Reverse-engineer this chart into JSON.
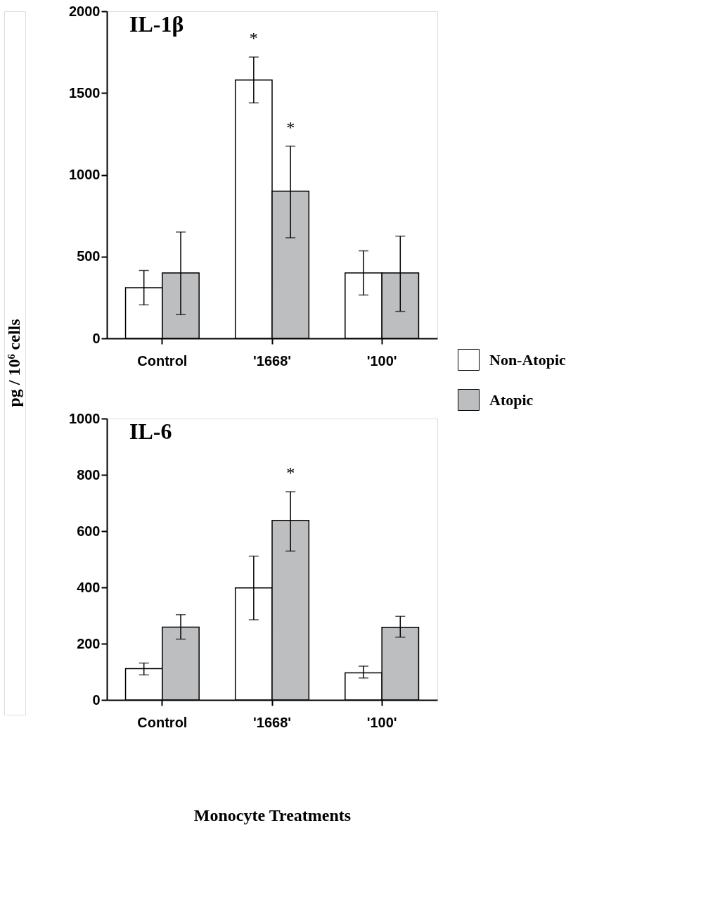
{
  "chart_data": [
    {
      "type": "bar",
      "title": "IL-1β",
      "ylabel": "pg / 10⁶ cells",
      "categories": [
        "Control",
        "'1668'",
        "'100'"
      ],
      "ylim": [
        0,
        2000
      ],
      "yticks": [
        0,
        500,
        1000,
        1500,
        2000
      ],
      "grid": false,
      "legend": "right",
      "series": [
        {
          "name": "Non-Atopic",
          "color": "#ffffff",
          "values": [
            310,
            1580,
            400
          ],
          "errors": [
            [
              205,
              415
            ],
            [
              1440,
              1720
            ],
            [
              265,
              535
            ]
          ]
        },
        {
          "name": "Atopic",
          "color": "#bcbec0",
          "values": [
            400,
            900,
            400
          ],
          "errors": [
            [
              145,
              650
            ],
            [
              615,
              1175
            ],
            [
              165,
              625
            ]
          ]
        }
      ],
      "annotations": [
        "*",
        "*"
      ]
    },
    {
      "type": "bar",
      "title": "IL-6",
      "xlabel": "Monocyte Treatments",
      "categories": [
        "Control",
        "'1668'",
        "'100'"
      ],
      "ylim": [
        0,
        1000
      ],
      "yticks": [
        0,
        200,
        400,
        600,
        800,
        1000
      ],
      "grid": false,
      "series": [
        {
          "name": "Non-Atopic",
          "color": "#ffffff",
          "values": [
            111,
            398,
            96
          ],
          "errors": [
            [
              89,
              131
            ],
            [
              285,
              511
            ],
            [
              78,
              120
            ]
          ]
        },
        {
          "name": "Atopic",
          "color": "#bcbec0",
          "values": [
            259,
            638,
            258
          ],
          "errors": [
            [
              216,
              303
            ],
            [
              529,
              740
            ],
            [
              223,
              297
            ]
          ]
        }
      ],
      "annotations": [
        "*"
      ]
    }
  ]
}
